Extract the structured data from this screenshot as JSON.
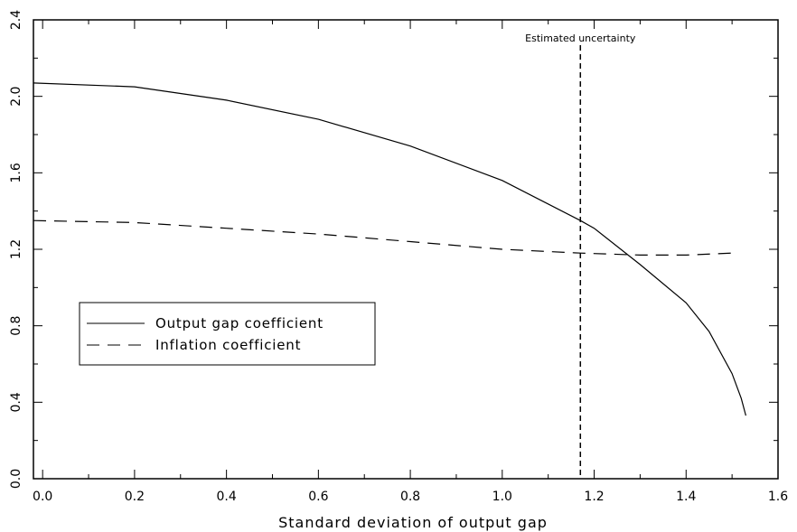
{
  "chart_data": {
    "type": "line",
    "title": "",
    "xlabel": "Standard deviation of output gap",
    "ylabel": "",
    "xlim": [
      -0.02,
      1.6
    ],
    "ylim": [
      0.0,
      2.4
    ],
    "x_ticks": [
      "0.0",
      "0.2",
      "0.4",
      "0.6",
      "0.8",
      "1.0",
      "1.2",
      "1.4",
      "1.6"
    ],
    "y_ticks": [
      "0.0",
      "0.4",
      "0.8",
      "1.2",
      "1.6",
      "2.0",
      "2.4"
    ],
    "grid": false,
    "legend_position": "middle-left",
    "series": [
      {
        "name": "Output gap coefficient",
        "style": "solid",
        "color": "#000000",
        "points": [
          [
            -0.02,
            2.07
          ],
          [
            0.2,
            2.05
          ],
          [
            0.4,
            1.98
          ],
          [
            0.6,
            1.88
          ],
          [
            0.8,
            1.74
          ],
          [
            1.0,
            1.56
          ],
          [
            1.17,
            1.35
          ],
          [
            1.2,
            1.31
          ],
          [
            1.3,
            1.12
          ],
          [
            1.4,
            0.92
          ],
          [
            1.45,
            0.77
          ],
          [
            1.5,
            0.55
          ],
          [
            1.52,
            0.42
          ],
          [
            1.53,
            0.33
          ]
        ]
      },
      {
        "name": "Inflation coefficient",
        "style": "dashed",
        "color": "#000000",
        "points": [
          [
            -0.02,
            1.35
          ],
          [
            0.2,
            1.34
          ],
          [
            0.4,
            1.31
          ],
          [
            0.6,
            1.28
          ],
          [
            0.8,
            1.24
          ],
          [
            1.0,
            1.2
          ],
          [
            1.17,
            1.18
          ],
          [
            1.3,
            1.17
          ],
          [
            1.4,
            1.17
          ],
          [
            1.5,
            1.18
          ]
        ]
      }
    ],
    "annotations": [
      {
        "text": "Estimated uncertainty",
        "x": 1.17,
        "line": "vertical-dashed"
      }
    ]
  }
}
